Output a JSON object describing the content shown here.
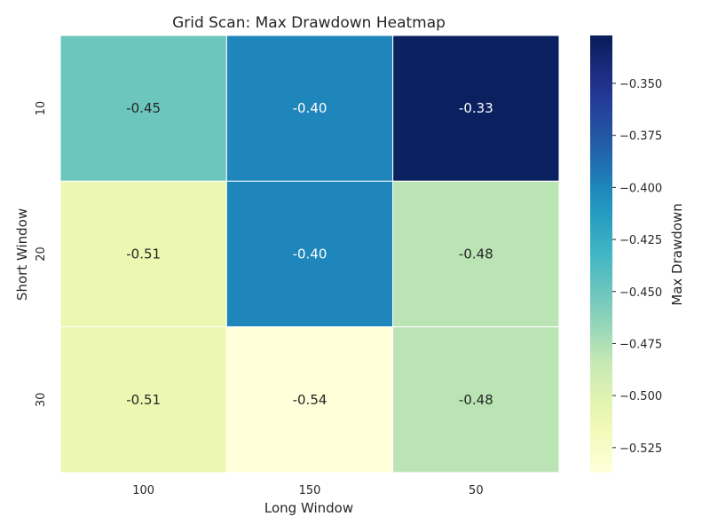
{
  "chart_data": {
    "type": "heatmap",
    "title": "Grid Scan: Max Drawdown Heatmap",
    "xlabel": "Long Window",
    "ylabel": "Short Window",
    "x_categories": [
      "100",
      "150",
      "50"
    ],
    "y_categories": [
      "10",
      "20",
      "30"
    ],
    "values": [
      [
        -0.45,
        -0.4,
        -0.33
      ],
      [
        -0.51,
        -0.4,
        -0.48
      ],
      [
        -0.51,
        -0.54,
        -0.48
      ]
    ],
    "cell_labels": [
      [
        "-0.45",
        "-0.40",
        "-0.33"
      ],
      [
        "-0.51",
        "-0.40",
        "-0.48"
      ],
      [
        "-0.51",
        "-0.54",
        "-0.48"
      ]
    ],
    "colorbar": {
      "label": "Max Drawdown",
      "range": [
        -0.537,
        -0.327
      ],
      "ticks": [
        -0.35,
        -0.375,
        -0.4,
        -0.425,
        -0.45,
        -0.475,
        -0.5,
        -0.525
      ],
      "tick_labels": [
        "−0.350",
        "−0.375",
        "−0.400",
        "−0.425",
        "−0.450",
        "−0.475",
        "−0.500",
        "−0.525"
      ],
      "colormap": "YlGnBu"
    },
    "grid": false
  }
}
